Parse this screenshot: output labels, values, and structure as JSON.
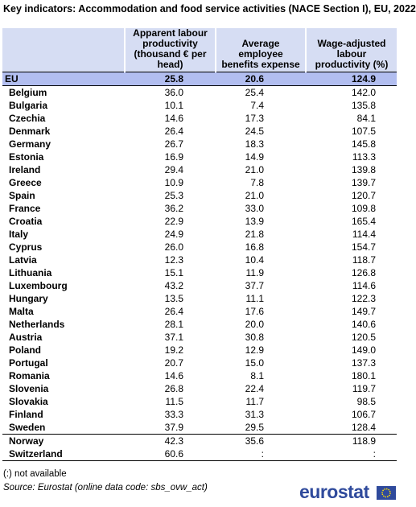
{
  "title": "Key indicators: Accommodation and food service activities (NACE Section I), EU, 2022",
  "table": {
    "headers": [
      "Apparent labour productivity (thousand € per head)",
      "Average employee benefits expense",
      "Wage-adjusted labour productivity (%)"
    ],
    "groups": [
      [
        {
          "label": "EU",
          "values": [
            "25.8",
            "20.6",
            "124.9"
          ]
        }
      ],
      [
        {
          "label": "Belgium",
          "values": [
            "36.0",
            "25.4",
            "142.0"
          ]
        },
        {
          "label": "Bulgaria",
          "values": [
            "10.1",
            "7.4",
            "135.8"
          ]
        },
        {
          "label": "Czechia",
          "values": [
            "14.6",
            "17.3",
            "84.1"
          ]
        },
        {
          "label": "Denmark",
          "values": [
            "26.4",
            "24.5",
            "107.5"
          ]
        },
        {
          "label": "Germany",
          "values": [
            "26.7",
            "18.3",
            "145.8"
          ]
        },
        {
          "label": "Estonia",
          "values": [
            "16.9",
            "14.9",
            "113.3"
          ]
        },
        {
          "label": "Ireland",
          "values": [
            "29.4",
            "21.0",
            "139.8"
          ]
        },
        {
          "label": "Greece",
          "values": [
            "10.9",
            "7.8",
            "139.7"
          ]
        },
        {
          "label": "Spain",
          "values": [
            "25.3",
            "21.0",
            "120.7"
          ]
        },
        {
          "label": "France",
          "values": [
            "36.2",
            "33.0",
            "109.8"
          ]
        },
        {
          "label": "Croatia",
          "values": [
            "22.9",
            "13.9",
            "165.4"
          ]
        },
        {
          "label": "Italy",
          "values": [
            "24.9",
            "21.8",
            "114.4"
          ]
        },
        {
          "label": "Cyprus",
          "values": [
            "26.0",
            "16.8",
            "154.7"
          ]
        },
        {
          "label": "Latvia",
          "values": [
            "12.3",
            "10.4",
            "118.7"
          ]
        },
        {
          "label": "Lithuania",
          "values": [
            "15.1",
            "11.9",
            "126.8"
          ]
        },
        {
          "label": "Luxembourg",
          "values": [
            "43.2",
            "37.7",
            "114.6"
          ]
        },
        {
          "label": "Hungary",
          "values": [
            "13.5",
            "11.1",
            "122.3"
          ]
        },
        {
          "label": "Malta",
          "values": [
            "26.4",
            "17.6",
            "149.7"
          ]
        },
        {
          "label": "Netherlands",
          "values": [
            "28.1",
            "20.0",
            "140.6"
          ]
        },
        {
          "label": "Austria",
          "values": [
            "37.1",
            "30.8",
            "120.5"
          ]
        },
        {
          "label": "Poland",
          "values": [
            "19.2",
            "12.9",
            "149.0"
          ]
        },
        {
          "label": "Portugal",
          "values": [
            "20.7",
            "15.0",
            "137.3"
          ]
        },
        {
          "label": "Romania",
          "values": [
            "14.6",
            "8.1",
            "180.1"
          ]
        },
        {
          "label": "Slovenia",
          "values": [
            "26.8",
            "22.4",
            "119.7"
          ]
        },
        {
          "label": "Slovakia",
          "values": [
            "11.5",
            "11.7",
            "98.5"
          ]
        },
        {
          "label": "Finland",
          "values": [
            "33.3",
            "31.3",
            "106.7"
          ]
        },
        {
          "label": "Sweden",
          "values": [
            "37.9",
            "29.5",
            "128.4"
          ]
        }
      ],
      [
        {
          "label": "Norway",
          "values": [
            "42.3",
            "35.6",
            "118.9"
          ]
        },
        {
          "label": "Switzerland",
          "values": [
            "60.6",
            ":",
            ":"
          ]
        }
      ]
    ]
  },
  "footnote": "(:) not available",
  "source": "Source: Eurostat (online data code: sbs_ovw_act)",
  "logo": "eurostat"
}
